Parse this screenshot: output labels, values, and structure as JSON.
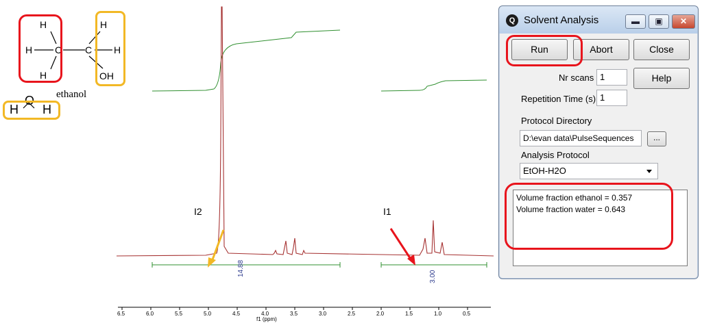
{
  "molecule": {
    "atoms": [
      "H",
      "H",
      "H",
      "C",
      "C",
      "H",
      "H",
      "OH"
    ],
    "label": "ethanol",
    "water_atoms": [
      "H",
      "O",
      "H"
    ]
  },
  "spectrum": {
    "integral_values": [
      "14.88",
      "3.00"
    ],
    "annotations": [
      "I2",
      "I1"
    ],
    "axis_ticks": [
      "6.5",
      "6.0",
      "5.5",
      "5.0",
      "4.5",
      "4.0",
      "3.5",
      "3.0",
      "2.5",
      "2.0",
      "1.5",
      "1.0",
      "0.5"
    ],
    "axis_label": "f1 (ppm)",
    "colors": {
      "spectrum": "#a63232",
      "integral": "#2f8f2f",
      "integral_label": "#2c3a8c"
    }
  },
  "window": {
    "title": "Solvent Analysis",
    "icon": "Q",
    "controls": [
      "minimize-icon",
      "maximize-icon",
      "close-icon"
    ],
    "buttons": {
      "run": "Run",
      "abort": "Abort",
      "close": "Close",
      "help": "Help",
      "browse": "..."
    },
    "fields": {
      "nr_scans_label": "Nr scans",
      "nr_scans": "1",
      "repetition_label": "Repetition Time (s)",
      "repetition": "1",
      "protocol_dir_label": "Protocol Directory",
      "protocol_dir": "D:\\evan data\\PulseSequences",
      "analysis_label": "Analysis Protocol",
      "analysis": "EtOH-H2O"
    },
    "results": [
      "Volume fraction ethanol = 0.357",
      "Volume fraction water = 0.643"
    ]
  },
  "highlight_colors": {
    "red": "#e8141c",
    "yellow": "#f2b825"
  }
}
